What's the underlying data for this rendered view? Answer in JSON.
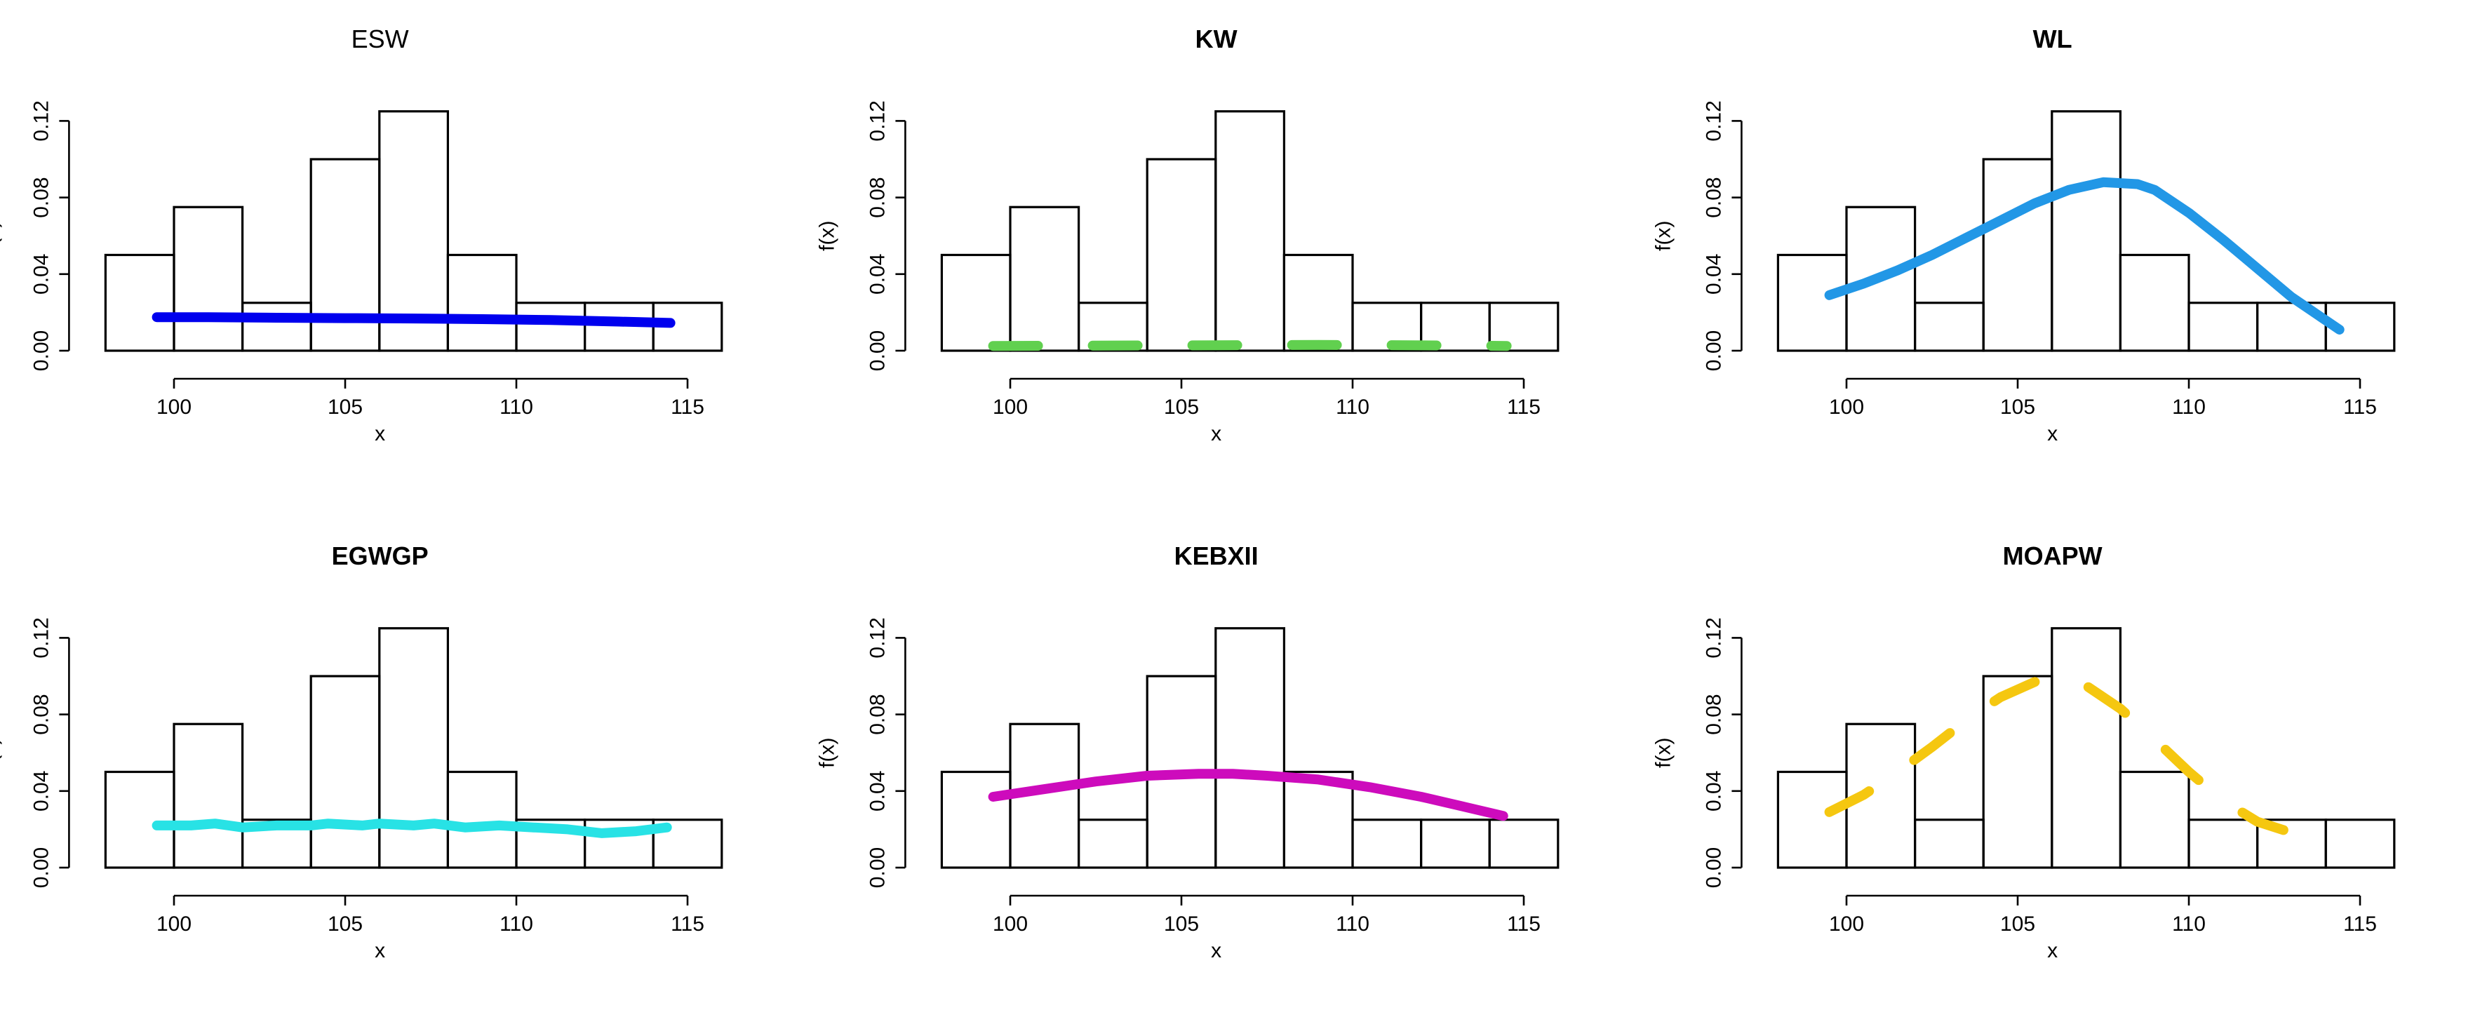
{
  "figure": {
    "rows": 2,
    "cols": 3,
    "histogram_breaks": [
      98,
      100,
      102,
      104,
      106,
      108,
      110,
      112,
      114,
      116
    ],
    "histogram_densities": [
      0.05,
      0.075,
      0.025,
      0.1,
      0.125,
      0.05,
      0.025,
      0.025,
      0.025
    ]
  },
  "chart_data": [
    {
      "type": "histogram",
      "title": "ESW",
      "title_bold": false,
      "xlabel": "x",
      "ylabel": "f(x)",
      "xlim": [
        98,
        116
      ],
      "ylim": [
        0,
        0.125
      ],
      "xticks": [
        100,
        105,
        110,
        115
      ],
      "yticks": [
        0.0,
        0.04,
        0.08,
        0.12
      ],
      "ytick_labels": [
        "0.00",
        "0.04",
        "0.08",
        "0.12"
      ],
      "bars": [
        {
          "x0": 98,
          "x1": 100,
          "density": 0.05
        },
        {
          "x0": 100,
          "x1": 102,
          "density": 0.075
        },
        {
          "x0": 102,
          "x1": 104,
          "density": 0.025
        },
        {
          "x0": 104,
          "x1": 106,
          "density": 0.1
        },
        {
          "x0": 106,
          "x1": 108,
          "density": 0.125
        },
        {
          "x0": 108,
          "x1": 110,
          "density": 0.05
        },
        {
          "x0": 110,
          "x1": 112,
          "density": 0.025
        },
        {
          "x0": 112,
          "x1": 114,
          "density": 0.025
        },
        {
          "x0": 114,
          "x1": 116,
          "density": 0.025
        }
      ],
      "curve": {
        "color": "#0000ee",
        "dash": "solid",
        "x": [
          99.5,
          101,
          103,
          105,
          107,
          109,
          111,
          113,
          114.5
        ],
        "y": [
          0.0175,
          0.0175,
          0.0172,
          0.017,
          0.0168,
          0.0165,
          0.016,
          0.0152,
          0.0145
        ]
      }
    },
    {
      "type": "histogram",
      "title": "KW",
      "title_bold": true,
      "xlabel": "x",
      "ylabel": "f(x)",
      "xlim": [
        98,
        116
      ],
      "ylim": [
        0,
        0.125
      ],
      "xticks": [
        100,
        105,
        110,
        115
      ],
      "yticks": [
        0.0,
        0.04,
        0.08,
        0.12
      ],
      "ytick_labels": [
        "0.00",
        "0.04",
        "0.08",
        "0.12"
      ],
      "bars": [
        {
          "x0": 98,
          "x1": 100,
          "density": 0.05
        },
        {
          "x0": 100,
          "x1": 102,
          "density": 0.075
        },
        {
          "x0": 102,
          "x1": 104,
          "density": 0.025
        },
        {
          "x0": 104,
          "x1": 106,
          "density": 0.1
        },
        {
          "x0": 106,
          "x1": 108,
          "density": 0.125
        },
        {
          "x0": 108,
          "x1": 110,
          "density": 0.05
        },
        {
          "x0": 110,
          "x1": 112,
          "density": 0.025
        },
        {
          "x0": 112,
          "x1": 114,
          "density": 0.025
        },
        {
          "x0": 114,
          "x1": 116,
          "density": 0.025
        }
      ],
      "curve": {
        "color": "#61d04f",
        "dash": "dashed",
        "x": [
          99.5,
          101,
          103,
          105,
          107,
          109,
          111,
          113,
          114.5
        ],
        "y": [
          0.0025,
          0.0026,
          0.0027,
          0.0028,
          0.0029,
          0.003,
          0.0029,
          0.0027,
          0.0025
        ]
      }
    },
    {
      "type": "histogram",
      "title": "WL",
      "title_bold": true,
      "xlabel": "x",
      "ylabel": "f(x)",
      "xlim": [
        98,
        116
      ],
      "ylim": [
        0,
        0.125
      ],
      "xticks": [
        100,
        105,
        110,
        115
      ],
      "yticks": [
        0.0,
        0.04,
        0.08,
        0.12
      ],
      "ytick_labels": [
        "0.00",
        "0.04",
        "0.08",
        "0.12"
      ],
      "bars": [
        {
          "x0": 98,
          "x1": 100,
          "density": 0.05
        },
        {
          "x0": 100,
          "x1": 102,
          "density": 0.075
        },
        {
          "x0": 102,
          "x1": 104,
          "density": 0.025
        },
        {
          "x0": 104,
          "x1": 106,
          "density": 0.1
        },
        {
          "x0": 106,
          "x1": 108,
          "density": 0.125
        },
        {
          "x0": 108,
          "x1": 110,
          "density": 0.05
        },
        {
          "x0": 110,
          "x1": 112,
          "density": 0.025
        },
        {
          "x0": 112,
          "x1": 114,
          "density": 0.025
        },
        {
          "x0": 114,
          "x1": 116,
          "density": 0.025
        }
      ],
      "curve": {
        "color": "#2297e6",
        "dash": "solid",
        "x": [
          99.5,
          100.5,
          101.5,
          102.5,
          103.5,
          104.5,
          105.5,
          106.5,
          107.5,
          108.5,
          109,
          110,
          111,
          112,
          113,
          114.4
        ],
        "y": [
          0.029,
          0.035,
          0.042,
          0.05,
          0.059,
          0.068,
          0.077,
          0.084,
          0.088,
          0.087,
          0.084,
          0.072,
          0.058,
          0.043,
          0.028,
          0.011
        ]
      }
    },
    {
      "type": "histogram",
      "title": "EGWGP",
      "title_bold": true,
      "xlabel": "x",
      "ylabel": "f(x)",
      "xlim": [
        98,
        116
      ],
      "ylim": [
        0,
        0.125
      ],
      "xticks": [
        100,
        105,
        110,
        115
      ],
      "yticks": [
        0.0,
        0.04,
        0.08,
        0.12
      ],
      "ytick_labels": [
        "0.00",
        "0.04",
        "0.08",
        "0.12"
      ],
      "bars": [
        {
          "x0": 98,
          "x1": 100,
          "density": 0.05
        },
        {
          "x0": 100,
          "x1": 102,
          "density": 0.075
        },
        {
          "x0": 102,
          "x1": 104,
          "density": 0.025
        },
        {
          "x0": 104,
          "x1": 106,
          "density": 0.1
        },
        {
          "x0": 106,
          "x1": 108,
          "density": 0.125
        },
        {
          "x0": 108,
          "x1": 110,
          "density": 0.05
        },
        {
          "x0": 110,
          "x1": 112,
          "density": 0.025
        },
        {
          "x0": 112,
          "x1": 114,
          "density": 0.025
        },
        {
          "x0": 114,
          "x1": 116,
          "density": 0.025
        }
      ],
      "curve": {
        "color": "#28e2e5",
        "dash": "solid",
        "x": [
          99.5,
          100.5,
          101.2,
          102,
          103,
          104,
          104.5,
          105.5,
          106,
          107,
          107.6,
          108.5,
          109.5,
          110.5,
          111.5,
          112.5,
          113.5,
          114.4
        ],
        "y": [
          0.022,
          0.022,
          0.023,
          0.021,
          0.022,
          0.022,
          0.023,
          0.022,
          0.023,
          0.022,
          0.023,
          0.021,
          0.022,
          0.021,
          0.02,
          0.018,
          0.019,
          0.021
        ]
      }
    },
    {
      "type": "histogram",
      "title": "KEBXII",
      "title_bold": true,
      "xlabel": "x",
      "ylabel": "f(x)",
      "xlim": [
        98,
        116
      ],
      "ylim": [
        0,
        0.125
      ],
      "xticks": [
        100,
        105,
        110,
        115
      ],
      "yticks": [
        0.0,
        0.04,
        0.08,
        0.12
      ],
      "ytick_labels": [
        "0.00",
        "0.04",
        "0.08",
        "0.12"
      ],
      "bars": [
        {
          "x0": 98,
          "x1": 100,
          "density": 0.05
        },
        {
          "x0": 100,
          "x1": 102,
          "density": 0.075
        },
        {
          "x0": 102,
          "x1": 104,
          "density": 0.025
        },
        {
          "x0": 104,
          "x1": 106,
          "density": 0.1
        },
        {
          "x0": 106,
          "x1": 108,
          "density": 0.125
        },
        {
          "x0": 108,
          "x1": 110,
          "density": 0.05
        },
        {
          "x0": 110,
          "x1": 112,
          "density": 0.025
        },
        {
          "x0": 112,
          "x1": 114,
          "density": 0.025
        },
        {
          "x0": 114,
          "x1": 116,
          "density": 0.025
        }
      ],
      "curve": {
        "color": "#cd0bbc",
        "dash": "solid",
        "x": [
          99.5,
          101,
          102.5,
          104,
          105.5,
          106.5,
          107.5,
          109,
          110.5,
          112,
          113.2,
          114.4
        ],
        "y": [
          0.037,
          0.041,
          0.045,
          0.048,
          0.049,
          0.049,
          0.048,
          0.046,
          0.042,
          0.037,
          0.032,
          0.027
        ]
      }
    },
    {
      "type": "histogram",
      "title": "MOAPW",
      "title_bold": true,
      "xlabel": "x",
      "ylabel": "f(x)",
      "xlim": [
        98,
        116
      ],
      "ylim": [
        0,
        0.125
      ],
      "xticks": [
        100,
        105,
        110,
        115
      ],
      "yticks": [
        0.0,
        0.04,
        0.08,
        0.12
      ],
      "ytick_labels": [
        "0.00",
        "0.04",
        "0.08",
        "0.12"
      ],
      "bars": [
        {
          "x0": 98,
          "x1": 100,
          "density": 0.05
        },
        {
          "x0": 100,
          "x1": 102,
          "density": 0.075
        },
        {
          "x0": 102,
          "x1": 104,
          "density": 0.025
        },
        {
          "x0": 104,
          "x1": 106,
          "density": 0.1
        },
        {
          "x0": 106,
          "x1": 108,
          "density": 0.125
        },
        {
          "x0": 108,
          "x1": 110,
          "density": 0.05
        },
        {
          "x0": 110,
          "x1": 112,
          "density": 0.025
        },
        {
          "x0": 112,
          "x1": 114,
          "density": 0.025
        },
        {
          "x0": 114,
          "x1": 116,
          "density": 0.025
        }
      ],
      "curve": {
        "color": "#f5c710",
        "dash": "dashed",
        "x": [
          99.5,
          100.5,
          101.5,
          102.5,
          103.5,
          104.5,
          105.5,
          106.3,
          107,
          108,
          109,
          110,
          111,
          112,
          113.4
        ],
        "y": [
          0.029,
          0.038,
          0.05,
          0.063,
          0.077,
          0.089,
          0.097,
          0.098,
          0.095,
          0.083,
          0.067,
          0.05,
          0.035,
          0.024,
          0.016
        ]
      }
    }
  ]
}
